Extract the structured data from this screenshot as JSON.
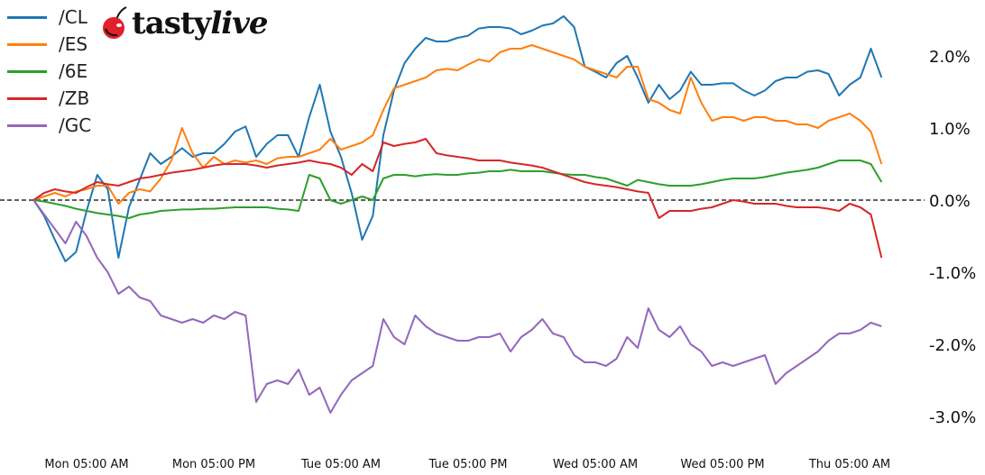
{
  "logo": {
    "text_main": "tasty",
    "text_italic": "live",
    "accent_color": "#e0202b"
  },
  "chart_data": {
    "type": "line",
    "title": "",
    "xlabel": "",
    "ylabel": "",
    "legend_placement": "top-left",
    "grid": false,
    "reference_line": {
      "y": 0,
      "style": "dashed",
      "color": "#000000"
    },
    "ylim": [
      -3.35,
      2.78
    ],
    "y_ticks": [
      2.0,
      1.0,
      0.0,
      -1.0,
      -2.0,
      -3.0
    ],
    "y_tick_labels": [
      "2.0%",
      "1.0%",
      "0.0%",
      "-1.0%",
      "-2.0%",
      "-3.0%"
    ],
    "y_axis_side": "right",
    "x_ticks": [
      "Mon 05:00",
      "Mon 17:00",
      "Tue 05:00",
      "Tue 17:00",
      "Wed 05:00",
      "Wed 17:00",
      "Thu 05:00"
    ],
    "x_tick_labels": [
      "Mon 05:00 AM",
      "Mon 05:00 PM",
      "Tue 05:00 AM",
      "Tue 05:00 PM",
      "Wed 05:00 AM",
      "Wed 05:00 PM",
      "Thu 05:00 AM"
    ],
    "x": [
      "Mon 00:00",
      "Mon 01:00",
      "Mon 02:00",
      "Mon 03:00",
      "Mon 04:00",
      "Mon 05:00",
      "Mon 06:00",
      "Mon 07:00",
      "Mon 08:00",
      "Mon 09:00",
      "Mon 10:00",
      "Mon 11:00",
      "Mon 12:00",
      "Mon 13:00",
      "Mon 14:00",
      "Mon 15:00",
      "Mon 16:00",
      "Mon 17:00",
      "Mon 18:00",
      "Mon 19:00",
      "Mon 20:00",
      "Mon 21:00",
      "Mon 22:00",
      "Mon 23:00",
      "Tue 00:00",
      "Tue 01:00",
      "Tue 02:00",
      "Tue 03:00",
      "Tue 04:00",
      "Tue 05:00",
      "Tue 06:00",
      "Tue 07:00",
      "Tue 08:00",
      "Tue 09:00",
      "Tue 10:00",
      "Tue 11:00",
      "Tue 12:00",
      "Tue 13:00",
      "Tue 14:00",
      "Tue 15:00",
      "Tue 16:00",
      "Tue 17:00",
      "Tue 18:00",
      "Tue 19:00",
      "Tue 20:00",
      "Tue 21:00",
      "Tue 22:00",
      "Tue 23:00",
      "Wed 00:00",
      "Wed 01:00",
      "Wed 02:00",
      "Wed 03:00",
      "Wed 04:00",
      "Wed 05:00",
      "Wed 06:00",
      "Wed 07:00",
      "Wed 08:00",
      "Wed 09:00",
      "Wed 10:00",
      "Wed 11:00",
      "Wed 12:00",
      "Wed 13:00",
      "Wed 14:00",
      "Wed 15:00",
      "Wed 16:00",
      "Wed 17:00",
      "Wed 18:00",
      "Wed 19:00",
      "Wed 20:00",
      "Wed 21:00",
      "Wed 22:00",
      "Wed 23:00",
      "Thu 00:00",
      "Thu 01:00",
      "Thu 02:00",
      "Thu 03:00",
      "Thu 04:00",
      "Thu 05:00",
      "Thu 06:00",
      "Thu 07:00",
      "Thu 08:00"
    ],
    "series": [
      {
        "name": "/CL",
        "color": "#1f77b4",
        "values": [
          0,
          -0.22,
          -0.55,
          -0.85,
          -0.72,
          -0.15,
          0.35,
          0.15,
          -0.8,
          -0.1,
          0.28,
          0.65,
          0.5,
          0.6,
          0.72,
          0.6,
          0.65,
          0.65,
          0.78,
          0.95,
          1.02,
          0.6,
          0.78,
          0.9,
          0.9,
          0.6,
          1.15,
          1.6,
          0.95,
          0.6,
          0.1,
          -0.55,
          -0.22,
          0.9,
          1.52,
          1.9,
          2.1,
          2.25,
          2.2,
          2.2,
          2.25,
          2.28,
          2.38,
          2.4,
          2.4,
          2.38,
          2.3,
          2.35,
          2.42,
          2.45,
          2.55,
          2.4,
          1.85,
          1.78,
          1.7,
          1.9,
          2.0,
          1.7,
          1.35,
          1.6,
          1.4,
          1.52,
          1.78,
          1.6,
          1.6,
          1.62,
          1.62,
          1.52,
          1.45,
          1.52,
          1.65,
          1.7,
          1.7,
          1.78,
          1.8,
          1.75,
          1.45,
          1.6,
          1.7,
          2.1,
          1.7
        ]
      },
      {
        "name": "/ES",
        "color": "#ff7f0e",
        "values": [
          0,
          0.05,
          0.1,
          0.05,
          0.12,
          0.15,
          0.2,
          0.2,
          -0.05,
          0.1,
          0.15,
          0.12,
          0.3,
          0.55,
          1.0,
          0.65,
          0.45,
          0.6,
          0.5,
          0.55,
          0.52,
          0.55,
          0.5,
          0.58,
          0.6,
          0.6,
          0.65,
          0.7,
          0.85,
          0.7,
          0.75,
          0.8,
          0.9,
          1.25,
          1.55,
          1.6,
          1.65,
          1.7,
          1.8,
          1.82,
          1.8,
          1.88,
          1.95,
          1.92,
          2.05,
          2.1,
          2.1,
          2.15,
          2.1,
          2.05,
          2.0,
          1.95,
          1.85,
          1.8,
          1.75,
          1.7,
          1.85,
          1.85,
          1.4,
          1.35,
          1.25,
          1.2,
          1.7,
          1.35,
          1.1,
          1.15,
          1.15,
          1.1,
          1.15,
          1.15,
          1.1,
          1.1,
          1.05,
          1.05,
          1.0,
          1.1,
          1.15,
          1.2,
          1.1,
          0.95,
          0.5
        ]
      },
      {
        "name": "/6E",
        "color": "#2ca02c",
        "values": [
          0,
          -0.02,
          -0.05,
          -0.08,
          -0.12,
          -0.15,
          -0.18,
          -0.2,
          -0.22,
          -0.25,
          -0.2,
          -0.18,
          -0.15,
          -0.14,
          -0.13,
          -0.13,
          -0.12,
          -0.12,
          -0.11,
          -0.1,
          -0.1,
          -0.1,
          -0.1,
          -0.12,
          -0.13,
          -0.15,
          0.35,
          0.3,
          0.0,
          -0.05,
          0.0,
          0.05,
          0.0,
          0.3,
          0.35,
          0.35,
          0.33,
          0.35,
          0.36,
          0.35,
          0.35,
          0.37,
          0.38,
          0.4,
          0.4,
          0.42,
          0.4,
          0.4,
          0.4,
          0.38,
          0.36,
          0.35,
          0.35,
          0.32,
          0.3,
          0.25,
          0.2,
          0.28,
          0.25,
          0.22,
          0.2,
          0.2,
          0.2,
          0.22,
          0.25,
          0.28,
          0.3,
          0.3,
          0.3,
          0.32,
          0.35,
          0.38,
          0.4,
          0.42,
          0.45,
          0.5,
          0.55,
          0.55,
          0.55,
          0.5,
          0.25
        ]
      },
      {
        "name": "/ZB",
        "color": "#d62728",
        "values": [
          0,
          0.1,
          0.15,
          0.12,
          0.1,
          0.18,
          0.25,
          0.22,
          0.2,
          0.25,
          0.3,
          0.32,
          0.35,
          0.38,
          0.4,
          0.42,
          0.45,
          0.48,
          0.5,
          0.5,
          0.5,
          0.48,
          0.45,
          0.48,
          0.5,
          0.52,
          0.55,
          0.52,
          0.5,
          0.45,
          0.35,
          0.5,
          0.4,
          0.8,
          0.75,
          0.78,
          0.8,
          0.85,
          0.65,
          0.62,
          0.6,
          0.58,
          0.55,
          0.55,
          0.55,
          0.52,
          0.5,
          0.48,
          0.45,
          0.4,
          0.35,
          0.3,
          0.25,
          0.22,
          0.2,
          0.18,
          0.15,
          0.12,
          0.1,
          -0.25,
          -0.15,
          -0.15,
          -0.15,
          -0.12,
          -0.1,
          -0.05,
          0.0,
          -0.02,
          -0.05,
          -0.05,
          -0.05,
          -0.08,
          -0.1,
          -0.1,
          -0.1,
          -0.12,
          -0.15,
          -0.05,
          -0.1,
          -0.2,
          -0.8
        ]
      },
      {
        "name": "/GC",
        "color": "#9467bd",
        "values": [
          0,
          -0.2,
          -0.4,
          -0.6,
          -0.3,
          -0.5,
          -0.8,
          -1.0,
          -1.3,
          -1.2,
          -1.35,
          -1.4,
          -1.6,
          -1.65,
          -1.7,
          -1.65,
          -1.7,
          -1.6,
          -1.65,
          -1.55,
          -1.6,
          -2.8,
          -2.55,
          -2.5,
          -2.55,
          -2.35,
          -2.7,
          -2.6,
          -2.95,
          -2.7,
          -2.5,
          -2.4,
          -2.3,
          -1.65,
          -1.9,
          -2.0,
          -1.6,
          -1.75,
          -1.85,
          -1.9,
          -1.95,
          -1.95,
          -1.9,
          -1.9,
          -1.85,
          -2.1,
          -1.9,
          -1.8,
          -1.65,
          -1.85,
          -1.9,
          -2.15,
          -2.25,
          -2.25,
          -2.3,
          -2.2,
          -1.9,
          -2.05,
          -1.5,
          -1.8,
          -1.9,
          -1.75,
          -2.0,
          -2.1,
          -2.3,
          -2.25,
          -2.3,
          -2.25,
          -2.2,
          -2.15,
          -2.55,
          -2.4,
          -2.3,
          -2.2,
          -2.1,
          -1.95,
          -1.85,
          -1.85,
          -1.8,
          -1.7,
          -1.75
        ]
      }
    ]
  }
}
